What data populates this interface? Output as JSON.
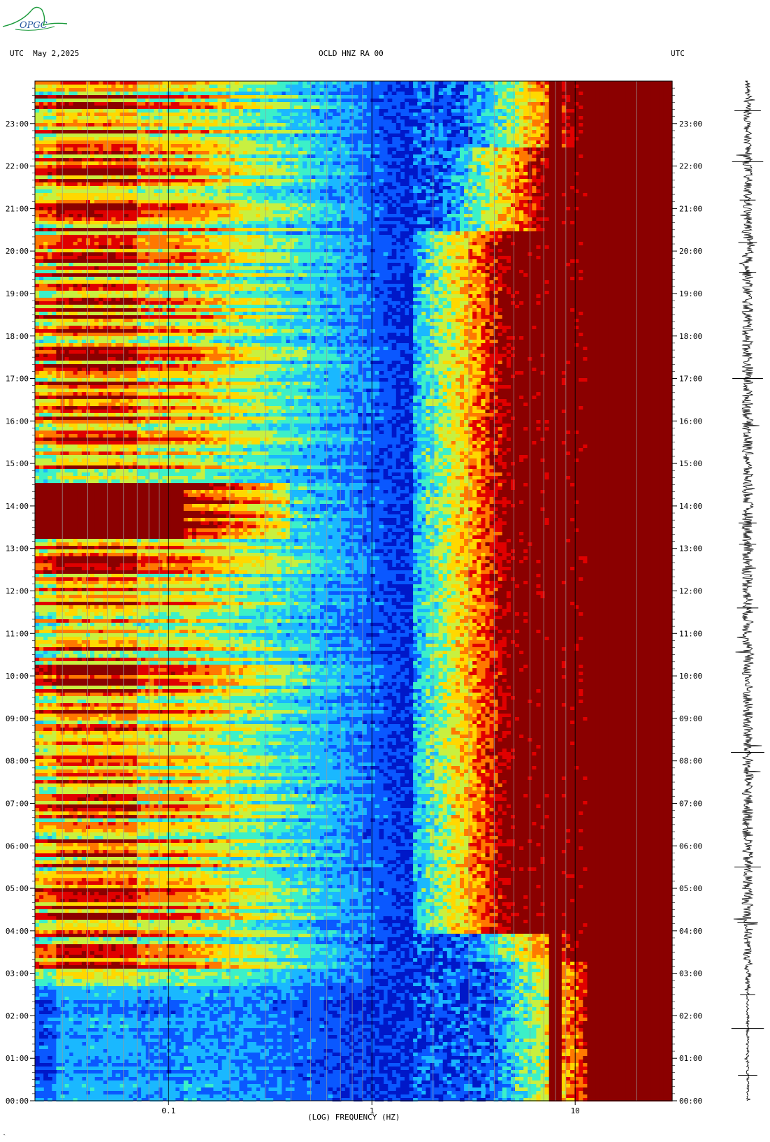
{
  "header": {
    "left": "UTC  May 2,2025",
    "center": "OCLD HNZ RA 00",
    "right": "UTC"
  },
  "logo": {
    "text": "OPGC",
    "color": "#1a9a3a"
  },
  "footer_mark": "‶",
  "chart_data": {
    "type": "heatmap",
    "title": "OCLD HNZ RA 00",
    "xlabel": "(LOG) FREQUENCY (HZ)",
    "x_scale": "log",
    "xlim": [
      0.022,
      30
    ],
    "x_ticks": [
      {
        "value": 0.1,
        "label": "0.1"
      },
      {
        "value": 1,
        "label": "1"
      },
      {
        "value": 10,
        "label": "10"
      }
    ],
    "ylim": [
      "00:00",
      "24:00"
    ],
    "y_ticks_left": [
      "00:00",
      "01:00",
      "02:00",
      "03:00",
      "04:00",
      "05:00",
      "06:00",
      "07:00",
      "08:00",
      "09:00",
      "10:00",
      "11:00",
      "12:00",
      "13:00",
      "14:00",
      "15:00",
      "16:00",
      "17:00",
      "18:00",
      "19:00",
      "20:00",
      "21:00",
      "22:00",
      "23:00"
    ],
    "y_ticks_right": [
      "00:00",
      "01:00",
      "02:00",
      "03:00",
      "04:00",
      "05:00",
      "06:00",
      "07:00",
      "08:00",
      "09:00",
      "10:00",
      "11:00",
      "12:00",
      "13:00",
      "14:00",
      "15:00",
      "16:00",
      "17:00",
      "18:00",
      "19:00",
      "20:00",
      "21:00",
      "22:00",
      "23:00"
    ],
    "colormap": [
      "#0018c8",
      "#0a58ff",
      "#1ab8ff",
      "#3cf0c8",
      "#c8f040",
      "#ffd800",
      "#ff7800",
      "#e00000",
      "#8b0000"
    ],
    "grid": "vertical log-decade lines",
    "seismogram": true
  }
}
